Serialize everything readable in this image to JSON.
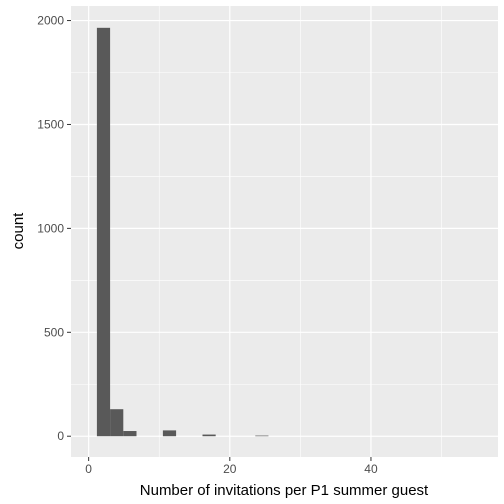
{
  "chart_data": {
    "type": "bar",
    "subtype": "histogram",
    "xlabel": "Number of invitations per P1 summer guest",
    "ylabel": "count",
    "xlim": [
      -2.5,
      58
    ],
    "ylim": [
      -100,
      2070
    ],
    "x_ticks": [
      0,
      20,
      40
    ],
    "x_minor_ticks": [
      10,
      30,
      50
    ],
    "y_ticks": [
      0,
      500,
      1000,
      1500,
      2000
    ],
    "y_minor_ticks": [
      250,
      750,
      1250,
      1750
    ],
    "grid": true,
    "legend": "none",
    "bin_width": 1.87,
    "bins": [
      {
        "x0": 1.17,
        "count": 1965
      },
      {
        "x0": 3.04,
        "count": 130
      },
      {
        "x0": 4.91,
        "count": 25
      },
      {
        "x0": 6.78,
        "count": 0
      },
      {
        "x0": 8.65,
        "count": 0
      },
      {
        "x0": 10.52,
        "count": 28
      },
      {
        "x0": 12.39,
        "count": 0
      },
      {
        "x0": 14.26,
        "count": 0
      },
      {
        "x0": 16.13,
        "count": 8
      },
      {
        "x0": 18.0,
        "count": 0
      },
      {
        "x0": 19.87,
        "count": 0
      },
      {
        "x0": 21.74,
        "count": 0
      },
      {
        "x0": 23.61,
        "count": 3
      }
    ],
    "colors": {
      "panel": "#ebebeb",
      "grid_major": "#ffffff",
      "bar": "#595959"
    }
  }
}
